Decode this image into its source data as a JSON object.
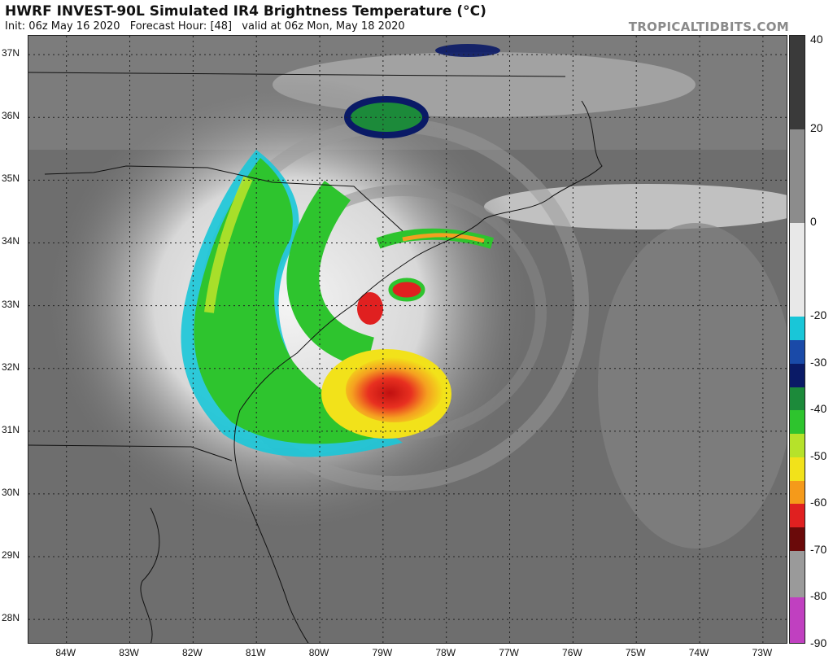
{
  "header": {
    "title": "HWRF INVEST-90L Simulated IR4 Brightness Temperature (°C)",
    "init": "Init: 06z May 16 2020",
    "forecast_hour": "Forecast Hour: [48]",
    "valid": "valid at 06z Mon, May 18 2020",
    "brand": "TROPICALTIDBITS.COM"
  },
  "map": {
    "lat_labels": [
      "37N",
      "36N",
      "35N",
      "34N",
      "33N",
      "32N",
      "31N",
      "30N",
      "29N",
      "28N"
    ],
    "lon_labels": [
      "84W",
      "83W",
      "82W",
      "81W",
      "80W",
      "79W",
      "78W",
      "77W",
      "76W",
      "75W",
      "74W",
      "73W"
    ],
    "lat_range": [
      27.6,
      37.3
    ],
    "lon_range": [
      -84.6,
      -72.6
    ]
  },
  "colorbar": {
    "labels": [
      "40",
      "20",
      "0",
      "-20",
      "-30",
      "-40",
      "-50",
      "-60",
      "-70",
      "-80",
      "-90"
    ],
    "values": [
      40,
      20,
      0,
      -20,
      -30,
      -40,
      -50,
      -60,
      -70,
      -80,
      -90
    ],
    "range": [
      -90,
      40
    ],
    "segments": [
      {
        "from": 40,
        "to": 20,
        "color": "#3a3a3a"
      },
      {
        "from": 20,
        "to": 0,
        "color": "#8c8c8c"
      },
      {
        "from": 0,
        "to": -20,
        "color": "#e8e8e8"
      },
      {
        "from": -20,
        "to": -25,
        "color": "#19c6d8"
      },
      {
        "from": -25,
        "to": -30,
        "color": "#1a4aa8"
      },
      {
        "from": -30,
        "to": -35,
        "color": "#0a1a66"
      },
      {
        "from": -35,
        "to": -40,
        "color": "#1c8a3a"
      },
      {
        "from": -40,
        "to": -45,
        "color": "#2ec42e"
      },
      {
        "from": -45,
        "to": -50,
        "color": "#b6e22a"
      },
      {
        "from": -50,
        "to": -55,
        "color": "#f2e21a"
      },
      {
        "from": -55,
        "to": -60,
        "color": "#f59a1a"
      },
      {
        "from": -60,
        "to": -65,
        "color": "#e02020"
      },
      {
        "from": -65,
        "to": -70,
        "color": "#6a0a0a"
      },
      {
        "from": -70,
        "to": -80,
        "color": "#9a9a9a"
      },
      {
        "from": -80,
        "to": -90,
        "color": "#c040c0"
      }
    ]
  }
}
